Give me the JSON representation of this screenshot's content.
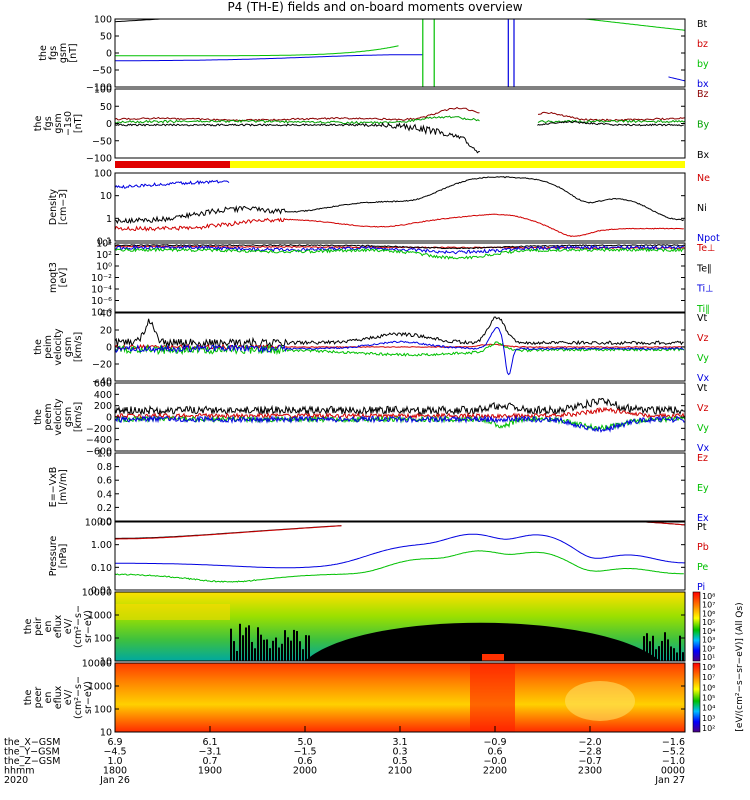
{
  "title": "P4 (TH-E) fields and on-board moments overview",
  "panels": [
    {
      "id": "fgs",
      "ylabel": [
        "the",
        "fgs",
        "gsm",
        "[nT]"
      ],
      "ticks": [
        "100",
        "50",
        "0",
        "−50",
        "−100"
      ],
      "legend": [
        {
          "text": "Bt",
          "color": "#000000"
        },
        {
          "text": "bz",
          "color": "#d00000"
        },
        {
          "text": "by",
          "color": "#00c000"
        },
        {
          "text": "bx",
          "color": "#0000e0"
        }
      ]
    },
    {
      "id": "fgs-1s",
      "ylabel": [
        "the",
        "fgs",
        "gsm",
        "−1s0",
        "[nT]"
      ],
      "ticks": [
        "100",
        "50",
        "0",
        "−50",
        "−100"
      ],
      "legend": [
        {
          "text": "Bz",
          "color": "#8b0000"
        },
        {
          "text": "By",
          "color": "#00a000"
        },
        {
          "text": "Bx",
          "color": "#000000"
        }
      ]
    },
    {
      "id": "density",
      "ylabel": [
        "Density",
        "[cm−3]"
      ],
      "ticks": [
        "100",
        "10",
        "1",
        "0.1"
      ],
      "legend": [
        {
          "text": "Ne",
          "color": "#d00000"
        },
        {
          "text": "Ni",
          "color": "#000000"
        },
        {
          "text": "Npot",
          "color": "#0000e0"
        }
      ]
    },
    {
      "id": "temp",
      "ylabel": [
        "moqt3",
        "[eV]"
      ],
      "ticks": [
        "10⁴",
        "10²",
        "10⁰",
        "10⁻²",
        "10⁻⁴",
        "10⁻⁶",
        "10⁻⁸"
      ],
      "legend": [
        {
          "text": "Te⊥",
          "color": "#d00000"
        },
        {
          "text": "Te∥",
          "color": "#000000"
        },
        {
          "text": "Ti⊥",
          "color": "#0000e0"
        },
        {
          "text": "Ti∥",
          "color": "#00c000"
        }
      ]
    },
    {
      "id": "peim",
      "ylabel": [
        "the",
        "peim",
        "velocity",
        "gsm",
        "[km/s]"
      ],
      "ticks": [
        "40",
        "20",
        "0",
        "−20",
        "−40"
      ],
      "legend": [
        {
          "text": "Vt",
          "color": "#000000"
        },
        {
          "text": "Vz",
          "color": "#d00000"
        },
        {
          "text": "Vy",
          "color": "#00c000"
        },
        {
          "text": "Vx",
          "color": "#0000e0"
        }
      ]
    },
    {
      "id": "peem",
      "ylabel": [
        "the",
        "peem",
        "velocity",
        "gsm",
        "[km/s]"
      ],
      "ticks": [
        "600",
        "400",
        "200",
        "0",
        "−200",
        "−400",
        "−600"
      ],
      "legend": [
        {
          "text": "Vt",
          "color": "#000000"
        },
        {
          "text": "Vz",
          "color": "#d00000"
        },
        {
          "text": "Vy",
          "color": "#00c000"
        },
        {
          "text": "Vx",
          "color": "#0000e0"
        }
      ]
    },
    {
      "id": "efield",
      "ylabel": [
        "E=−VxB",
        "[mV/m]"
      ],
      "ticks": [
        "1.0",
        "0.8",
        "0.6",
        "0.4",
        "0.2",
        "0.0"
      ],
      "legend": [
        {
          "text": "Ez",
          "color": "#d00000"
        },
        {
          "text": "Ey",
          "color": "#00c000"
        },
        {
          "text": "Ex",
          "color": "#0000e0"
        }
      ]
    },
    {
      "id": "pressure",
      "ylabel": [
        "Pressure",
        "[nPa]"
      ],
      "ticks": [
        "10.00",
        "1.00",
        "0.10",
        "0.01"
      ],
      "legend": [
        {
          "text": "Pt",
          "color": "#000000"
        },
        {
          "text": "Pb",
          "color": "#d00000"
        },
        {
          "text": "Pe",
          "color": "#00c000"
        },
        {
          "text": "Pi",
          "color": "#0000e0"
        }
      ]
    },
    {
      "id": "peir",
      "ylabel": [
        "the",
        "peir",
        "en",
        "eflux",
        "eV/",
        "(cm²−s−",
        "sr−eV)"
      ],
      "ticks": [
        "10000",
        "1000",
        "100",
        "10"
      ]
    },
    {
      "id": "peer",
      "ylabel": [
        "the",
        "peer",
        "en",
        "eflux",
        "eV/",
        "(cm²−s−",
        "sr−eV)"
      ],
      "ticks": [
        "10000",
        "1000",
        "100",
        "10"
      ]
    }
  ],
  "colorbar": {
    "ticks": [
      "10⁸",
      "10⁷",
      "10⁶",
      "10⁵",
      "10⁴",
      "10³",
      "10²",
      "10¹"
    ],
    "ticks_lower": [
      "10⁸",
      "10⁷",
      "10⁶",
      "10⁵",
      "10⁴",
      "10³",
      "10²"
    ],
    "label": "[eV/(cm²−s−sr−eV)] (All Qs)"
  },
  "xaxis": {
    "row_labels": [
      "the_X−GSM",
      "the_Y−GSM",
      "the_Z−GSM",
      "hhmm",
      "2020"
    ],
    "columns": [
      [
        "6.9",
        "−4.5",
        "1.0",
        "1800",
        "Jan 26"
      ],
      [
        "6.1",
        "−3.1",
        "0.7",
        "1900",
        ""
      ],
      [
        "5.0",
        "−1.5",
        "0.6",
        "2000",
        ""
      ],
      [
        "3.1",
        "0.3",
        "0.5",
        "2100",
        ""
      ],
      [
        "−0.9",
        "0.6",
        "−0.0",
        "2200",
        ""
      ],
      [
        "−2.0",
        "−2.8",
        "−0.7",
        "2300",
        ""
      ],
      [
        "−1.6",
        "−5.2",
        "−1.0",
        "0000",
        "Jan 27"
      ]
    ]
  },
  "chart_data": {
    "type": "line",
    "title": "P4 (TH-E) fields and on-board moments overview",
    "x_range": [
      "2020-01-26 18:00",
      "2020-01-27 00:00"
    ],
    "panels": [
      {
        "name": "fgs",
        "ylim": [
          -100,
          100
        ]
      },
      {
        "name": "fgs-1s",
        "ylim": [
          -120,
          120
        ]
      },
      {
        "name": "density",
        "scale": "log",
        "ylim": [
          0.1,
          200
        ]
      },
      {
        "name": "moqt3",
        "scale": "log",
        "ylim": [
          1e-08,
          10000.0
        ]
      },
      {
        "name": "peim velocity",
        "ylim": [
          -40,
          40
        ]
      },
      {
        "name": "peem velocity",
        "ylim": [
          -600,
          600
        ]
      },
      {
        "name": "E=−VxB",
        "ylim": [
          0,
          1
        ]
      },
      {
        "name": "pressure",
        "scale": "log",
        "ylim": [
          0.01,
          20
        ]
      },
      {
        "name": "peir eflux",
        "type": "heatmap",
        "ylim": [
          5,
          20000
        ]
      },
      {
        "name": "peer eflux",
        "type": "heatmap",
        "ylim": [
          5,
          20000
        ]
      }
    ]
  }
}
